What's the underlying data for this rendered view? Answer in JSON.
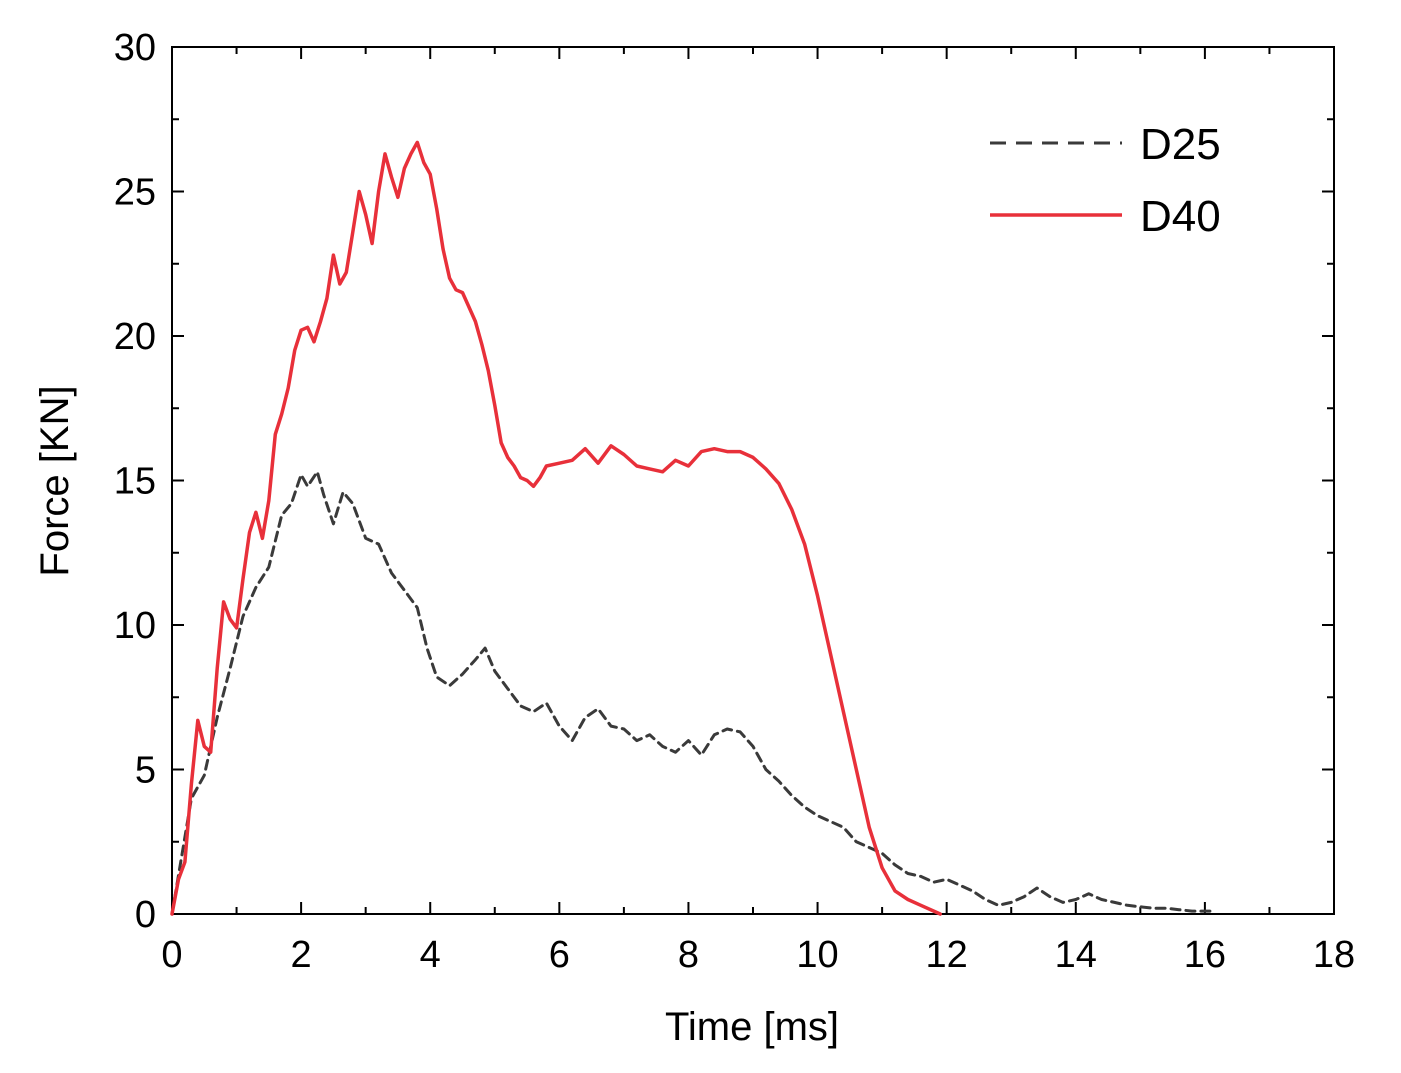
{
  "chart_data": {
    "type": "line",
    "xlabel": "Time [ms]",
    "ylabel": "Force [KN]",
    "xlim": [
      0,
      18
    ],
    "ylim": [
      0,
      30
    ],
    "xticks": [
      0,
      2,
      4,
      6,
      8,
      10,
      12,
      14,
      16,
      18
    ],
    "yticks": [
      0,
      5,
      10,
      15,
      20,
      25,
      30
    ],
    "grid": false,
    "legend_position": "top-right",
    "series": [
      {
        "name": "D25",
        "color": "#3a3a3a",
        "style": "dashed",
        "x": [
          0,
          0.15,
          0.3,
          0.5,
          0.7,
          0.9,
          1.1,
          1.3,
          1.5,
          1.7,
          1.85,
          2.0,
          2.1,
          2.25,
          2.35,
          2.5,
          2.65,
          2.8,
          3.0,
          3.2,
          3.4,
          3.6,
          3.8,
          3.95,
          4.1,
          4.3,
          4.5,
          4.7,
          4.85,
          5.0,
          5.2,
          5.4,
          5.6,
          5.8,
          6.0,
          6.2,
          6.4,
          6.6,
          6.8,
          7.0,
          7.2,
          7.4,
          7.6,
          7.8,
          8.0,
          8.2,
          8.4,
          8.6,
          8.8,
          9.0,
          9.2,
          9.4,
          9.6,
          9.8,
          10.0,
          10.2,
          10.4,
          10.6,
          10.8,
          11.0,
          11.2,
          11.4,
          11.6,
          11.8,
          12.0,
          12.2,
          12.4,
          12.6,
          12.8,
          13.0,
          13.2,
          13.4,
          13.6,
          13.8,
          14.0,
          14.2,
          14.4,
          14.6,
          14.8,
          15.0,
          15.2,
          15.4,
          15.6,
          15.8,
          16.0,
          16.1
        ],
        "y": [
          0,
          2.0,
          4.0,
          4.8,
          6.8,
          8.5,
          10.3,
          11.3,
          12.0,
          13.8,
          14.2,
          15.2,
          14.8,
          15.3,
          14.5,
          13.5,
          14.6,
          14.2,
          13.0,
          12.8,
          11.8,
          11.2,
          10.6,
          9.2,
          8.2,
          7.9,
          8.3,
          8.8,
          9.2,
          8.4,
          7.8,
          7.2,
          7.0,
          7.3,
          6.5,
          6.0,
          6.8,
          7.1,
          6.5,
          6.4,
          6.0,
          6.2,
          5.8,
          5.6,
          6.0,
          5.5,
          6.2,
          6.4,
          6.3,
          5.8,
          5.0,
          4.6,
          4.1,
          3.7,
          3.4,
          3.2,
          3.0,
          2.5,
          2.3,
          2.1,
          1.7,
          1.4,
          1.3,
          1.1,
          1.2,
          1.0,
          0.8,
          0.5,
          0.3,
          0.4,
          0.6,
          0.9,
          0.6,
          0.4,
          0.5,
          0.7,
          0.5,
          0.4,
          0.3,
          0.25,
          0.2,
          0.2,
          0.15,
          0.1,
          0.1,
          0.1
        ]
      },
      {
        "name": "D40",
        "color": "#e8303a",
        "style": "solid",
        "x": [
          0,
          0.1,
          0.2,
          0.3,
          0.4,
          0.5,
          0.6,
          0.7,
          0.8,
          0.9,
          1.0,
          1.1,
          1.2,
          1.3,
          1.4,
          1.5,
          1.6,
          1.7,
          1.8,
          1.9,
          2.0,
          2.1,
          2.2,
          2.3,
          2.4,
          2.5,
          2.6,
          2.7,
          2.8,
          2.9,
          3.0,
          3.1,
          3.2,
          3.3,
          3.4,
          3.5,
          3.6,
          3.7,
          3.8,
          3.9,
          4.0,
          4.1,
          4.2,
          4.3,
          4.4,
          4.5,
          4.6,
          4.7,
          4.8,
          4.9,
          5.0,
          5.1,
          5.2,
          5.3,
          5.4,
          5.5,
          5.6,
          5.7,
          5.8,
          6.0,
          6.2,
          6.4,
          6.6,
          6.8,
          7.0,
          7.2,
          7.4,
          7.6,
          7.8,
          8.0,
          8.2,
          8.4,
          8.6,
          8.8,
          9.0,
          9.2,
          9.4,
          9.6,
          9.8,
          10.0,
          10.2,
          10.4,
          10.6,
          10.8,
          11.0,
          11.2,
          11.4,
          11.6,
          11.8,
          11.9
        ],
        "y": [
          0,
          1.2,
          1.8,
          4.5,
          6.7,
          5.8,
          5.6,
          8.5,
          10.8,
          10.2,
          9.9,
          11.6,
          13.2,
          13.9,
          13.0,
          14.3,
          16.6,
          17.3,
          18.2,
          19.5,
          20.2,
          20.3,
          19.8,
          20.5,
          21.3,
          22.8,
          21.8,
          22.2,
          23.6,
          25.0,
          24.2,
          23.2,
          25.0,
          26.3,
          25.5,
          24.8,
          25.8,
          26.3,
          26.7,
          26.0,
          25.6,
          24.4,
          23.0,
          22.0,
          21.6,
          21.5,
          21.0,
          20.5,
          19.7,
          18.8,
          17.6,
          16.3,
          15.8,
          15.5,
          15.1,
          15.0,
          14.8,
          15.1,
          15.5,
          15.6,
          15.7,
          16.1,
          15.6,
          16.2,
          15.9,
          15.5,
          15.4,
          15.3,
          15.7,
          15.5,
          16.0,
          16.1,
          16.0,
          16.0,
          15.8,
          15.4,
          14.9,
          14.0,
          12.8,
          11.0,
          9.0,
          7.0,
          5.0,
          3.0,
          1.6,
          0.8,
          0.5,
          0.3,
          0.1,
          0.0
        ]
      }
    ]
  }
}
